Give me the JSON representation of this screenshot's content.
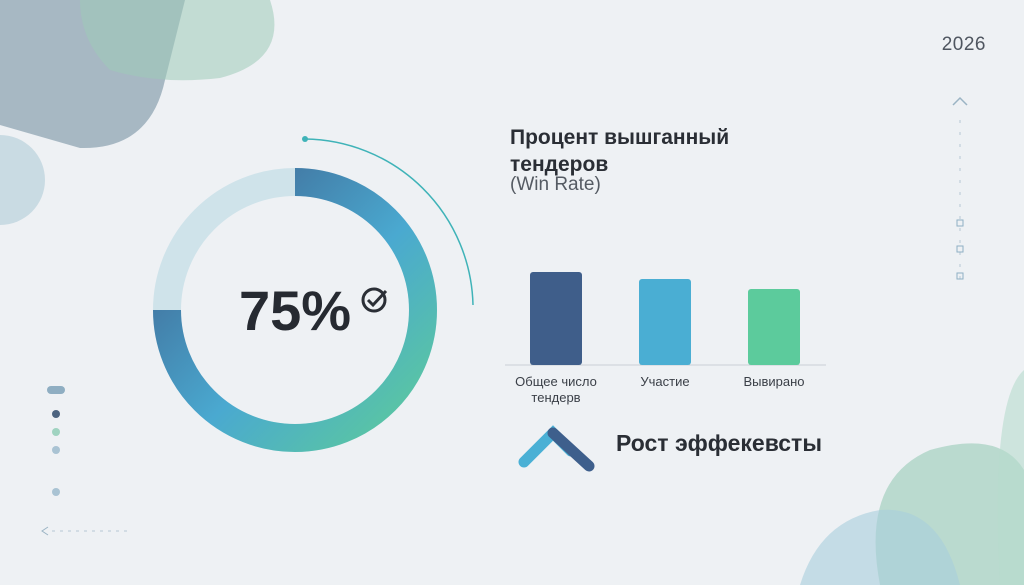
{
  "year": "2026",
  "chart_data": [
    {
      "type": "donut",
      "values": [
        75
      ],
      "value_labels": [
        "75%"
      ],
      "colors": [
        "#3e5f8c",
        "#4aa9d0",
        "#5dcb9a"
      ]
    },
    {
      "type": "bar",
      "title": "Процент вышганный тендеров",
      "subtitle": "(Win Rate)",
      "categories": [
        "Общее число тендерв",
        "Участие",
        "Вывирано"
      ],
      "values": [
        93,
        86,
        76
      ],
      "colors": [
        "#3f5e8a",
        "#4aaed3",
        "#5ccb9c"
      ],
      "ylim": [
        0,
        100
      ]
    }
  ],
  "trend_label": "Рост эффекевсты"
}
